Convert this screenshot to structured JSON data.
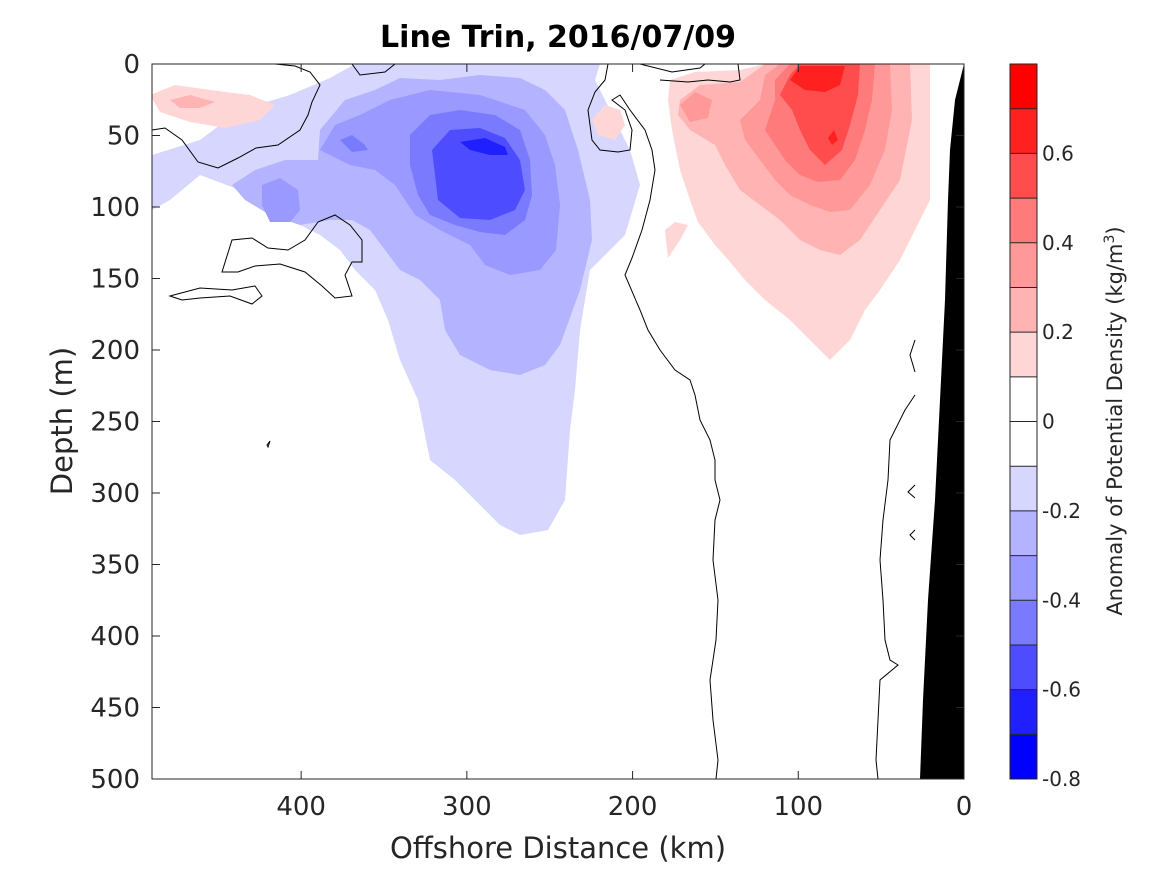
{
  "chart_data": {
    "type": "contour",
    "title": "Line Trin, 2016/07/09",
    "xlabel": "Offshore Distance (km)",
    "ylabel": "Depth (m)",
    "x_reversed": true,
    "xlim": [
      0,
      490
    ],
    "ylim": [
      0,
      500
    ],
    "y_reversed": true,
    "x_ticks": [
      400,
      300,
      200,
      100,
      0
    ],
    "y_ticks": [
      0,
      50,
      100,
      150,
      200,
      250,
      300,
      350,
      400,
      450,
      500
    ],
    "colorbar": {
      "label_main": "Anomaly of Potential Density (kg/m",
      "label_sup": "3",
      "label_end": ")",
      "range": [
        -0.8,
        0.8
      ],
      "step": 0.1,
      "ticks": [
        -0.8,
        -0.6,
        -0.4,
        -0.2,
        0,
        0.2,
        0.4,
        0.6
      ],
      "tick_labels": [
        "-0.8",
        "-0.6",
        "-0.4",
        "-0.2",
        "0",
        "0.2",
        "0.4",
        "0.6"
      ],
      "colors": [
        "#0000ff",
        "#2020ff",
        "#4d4dff",
        "#7a7aff",
        "#9999ff",
        "#b3b3ff",
        "#d6d6ff",
        "#ffffff",
        "#ffffff",
        "#ffd6d6",
        "#ffb3b3",
        "#ff9999",
        "#ff7a7a",
        "#ff4d4d",
        "#ff2020",
        "#ff0000"
      ]
    },
    "features": [
      {
        "name": "negative-anomaly-core",
        "x_center": 290,
        "depth_center": 80,
        "min_value": -0.6
      },
      {
        "name": "positive-anomaly-core",
        "x_center": 90,
        "depth_center": 10,
        "max_value": 0.6
      },
      {
        "name": "bottom-topography",
        "color": "#000000"
      }
    ]
  }
}
